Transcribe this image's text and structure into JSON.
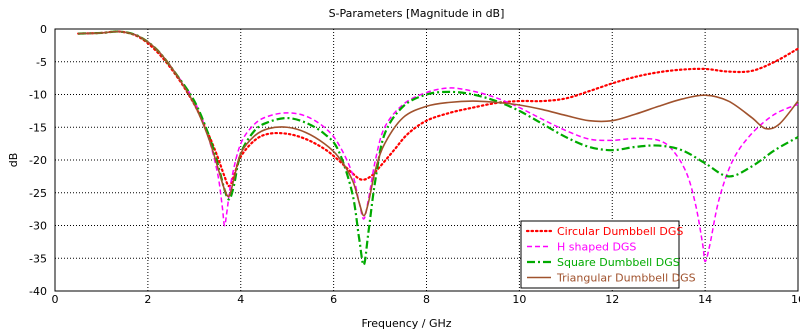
{
  "chart_data": {
    "type": "line",
    "title": "S-Parameters [Magnitude in dB]",
    "xlabel": "Frequency / GHz",
    "ylabel": "dB",
    "xlim": [
      0,
      16
    ],
    "ylim": [
      -40,
      0
    ],
    "xticks": [
      0,
      2,
      4,
      6,
      8,
      10,
      12,
      14,
      16
    ],
    "yticks": [
      0,
      -5,
      -10,
      -15,
      -20,
      -25,
      -30,
      -35,
      -40
    ],
    "grid": true,
    "legend_position": "bottom-right",
    "series": [
      {
        "name": "Circular Dumbbell DGS",
        "color": "#ff0000",
        "dash": "dotted",
        "x": [
          0.5,
          1.0,
          1.4,
          1.8,
          2.2,
          2.6,
          3.0,
          3.3,
          3.5,
          3.65,
          3.75,
          3.85,
          4.0,
          4.3,
          4.6,
          5.0,
          5.4,
          5.8,
          6.1,
          6.4,
          6.6,
          6.8,
          7.0,
          7.3,
          7.6,
          8.0,
          8.5,
          9.0,
          9.5,
          10.0,
          10.5,
          11.0,
          11.5,
          12.0,
          12.5,
          13.0,
          13.5,
          14.0,
          14.5,
          15.0,
          15.5,
          16.0
        ],
        "y": [
          -0.7,
          -0.6,
          -0.4,
          -1.2,
          -3.5,
          -7.0,
          -11.5,
          -16.0,
          -19.5,
          -22.5,
          -24.0,
          -22.5,
          -19.5,
          -17.0,
          -16.0,
          -16.0,
          -16.8,
          -18.3,
          -20.0,
          -22.0,
          -23.0,
          -22.5,
          -21.0,
          -18.5,
          -16.0,
          -14.0,
          -12.8,
          -12.0,
          -11.3,
          -11.0,
          -11.0,
          -10.6,
          -9.5,
          -8.3,
          -7.3,
          -6.6,
          -6.2,
          -6.1,
          -6.5,
          -6.4,
          -5.0,
          -3.0
        ]
      },
      {
        "name": "H shaped DGS",
        "color": "#ff00ff",
        "dash": "dashed",
        "x": [
          0.5,
          1.0,
          1.4,
          1.8,
          2.2,
          2.6,
          3.0,
          3.3,
          3.5,
          3.6,
          3.65,
          3.7,
          3.8,
          4.0,
          4.3,
          4.6,
          5.0,
          5.4,
          5.8,
          6.1,
          6.4,
          6.55,
          6.65,
          6.75,
          6.9,
          7.1,
          7.5,
          8.0,
          8.5,
          9.0,
          9.5,
          10.0,
          10.5,
          11.0,
          11.5,
          12.0,
          12.5,
          13.0,
          13.3,
          13.6,
          13.8,
          13.95,
          14.0,
          14.1,
          14.3,
          14.6,
          15.0,
          15.5,
          16.0
        ],
        "y": [
          -0.7,
          -0.6,
          -0.4,
          -1.1,
          -3.2,
          -6.8,
          -11.0,
          -16.5,
          -22.0,
          -27.0,
          -30.0,
          -28.0,
          -23.0,
          -17.5,
          -14.5,
          -13.3,
          -12.8,
          -13.3,
          -15.0,
          -17.5,
          -22.0,
          -26.5,
          -29.0,
          -26.0,
          -20.0,
          -15.0,
          -11.5,
          -9.7,
          -9.0,
          -9.5,
          -10.5,
          -12.0,
          -13.8,
          -15.5,
          -16.8,
          -17.0,
          -16.7,
          -17.0,
          -18.5,
          -22.0,
          -27.0,
          -33.0,
          -35.5,
          -33.0,
          -26.0,
          -20.0,
          -16.0,
          -13.0,
          -11.5
        ]
      },
      {
        "name": "Square Dumbbell DGS",
        "color": "#00aa00",
        "dash": "dashdot",
        "x": [
          0.5,
          1.0,
          1.4,
          1.8,
          2.2,
          2.6,
          3.0,
          3.3,
          3.5,
          3.65,
          3.75,
          3.85,
          4.0,
          4.3,
          4.6,
          5.0,
          5.4,
          5.8,
          6.1,
          6.4,
          6.55,
          6.65,
          6.75,
          6.9,
          7.1,
          7.5,
          8.0,
          8.5,
          9.0,
          9.5,
          10.0,
          10.5,
          11.0,
          11.5,
          12.0,
          12.5,
          13.0,
          13.5,
          14.0,
          14.5,
          15.0,
          15.5,
          16.0
        ],
        "y": [
          -0.7,
          -0.6,
          -0.4,
          -1.1,
          -3.2,
          -6.8,
          -11.0,
          -16.0,
          -20.5,
          -24.5,
          -26.0,
          -24.0,
          -19.0,
          -15.5,
          -14.2,
          -13.6,
          -14.3,
          -16.0,
          -18.5,
          -25.0,
          -32.0,
          -36.0,
          -31.0,
          -23.0,
          -16.0,
          -11.8,
          -10.0,
          -9.6,
          -10.0,
          -11.0,
          -12.5,
          -14.5,
          -16.5,
          -18.0,
          -18.5,
          -18.0,
          -17.8,
          -18.5,
          -20.5,
          -22.5,
          -21.0,
          -18.5,
          -16.5
        ]
      },
      {
        "name": "Triangular Dumbbell DGS",
        "color": "#a0522d",
        "dash": "solid",
        "x": [
          0.5,
          1.0,
          1.4,
          1.8,
          2.2,
          2.6,
          3.0,
          3.3,
          3.5,
          3.65,
          3.75,
          3.85,
          4.0,
          4.3,
          4.6,
          5.0,
          5.4,
          5.8,
          6.1,
          6.4,
          6.55,
          6.65,
          6.75,
          6.9,
          7.1,
          7.5,
          8.0,
          8.5,
          9.0,
          9.5,
          10.0,
          10.5,
          11.0,
          11.5,
          12.0,
          12.5,
          13.0,
          13.5,
          14.0,
          14.5,
          15.0,
          15.3,
          15.6,
          16.0
        ],
        "y": [
          -0.7,
          -0.6,
          -0.4,
          -1.1,
          -3.2,
          -6.8,
          -11.5,
          -16.5,
          -21.0,
          -24.5,
          -25.5,
          -23.0,
          -19.0,
          -16.3,
          -15.2,
          -15.0,
          -15.8,
          -17.5,
          -19.5,
          -23.0,
          -26.5,
          -28.5,
          -26.5,
          -21.5,
          -17.5,
          -13.5,
          -11.8,
          -11.2,
          -11.0,
          -11.2,
          -11.6,
          -12.3,
          -13.2,
          -14.0,
          -14.0,
          -13.0,
          -11.8,
          -10.7,
          -10.1,
          -11.0,
          -13.5,
          -15.2,
          -14.5,
          -11.0
        ]
      }
    ]
  }
}
